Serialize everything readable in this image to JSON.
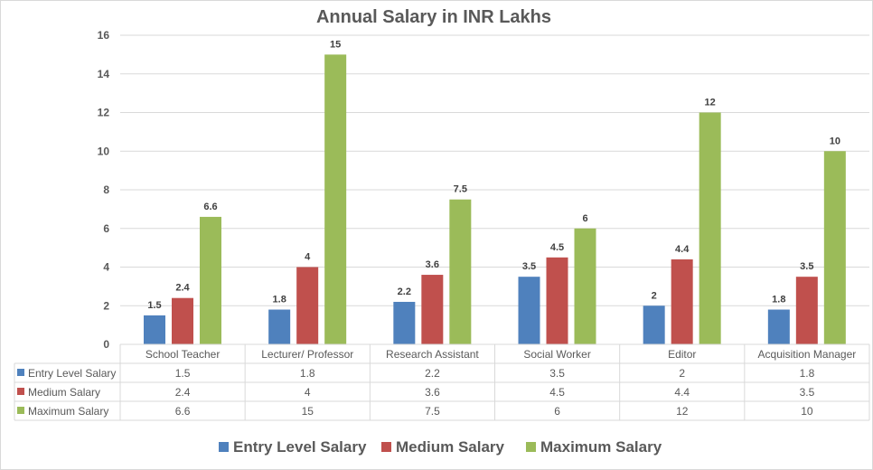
{
  "chart_data": {
    "type": "bar",
    "title": "Annual Salary in INR Lakhs",
    "xlabel": "",
    "ylabel": "",
    "ylim": [
      0,
      16
    ],
    "yticks": [
      0,
      2,
      4,
      6,
      8,
      10,
      12,
      14,
      16
    ],
    "grid": true,
    "legend_position": "bottom",
    "categories": [
      "School Teacher",
      "Lecturer/ Professor",
      "Research Assistant",
      "Social Worker",
      "Editor",
      "Acquisition Manager"
    ],
    "series": [
      {
        "name": "Entry Level Salary",
        "color": "#4f81bd",
        "values": [
          1.5,
          1.8,
          2.2,
          3.5,
          2,
          1.8
        ]
      },
      {
        "name": "Medium Salary",
        "color": "#c0504d",
        "values": [
          2.4,
          4,
          3.6,
          4.5,
          4.4,
          3.5
        ]
      },
      {
        "name": "Maximum Salary",
        "color": "#9bbb59",
        "values": [
          6.6,
          15,
          7.5,
          6,
          12,
          10
        ]
      }
    ],
    "data_table": true
  }
}
